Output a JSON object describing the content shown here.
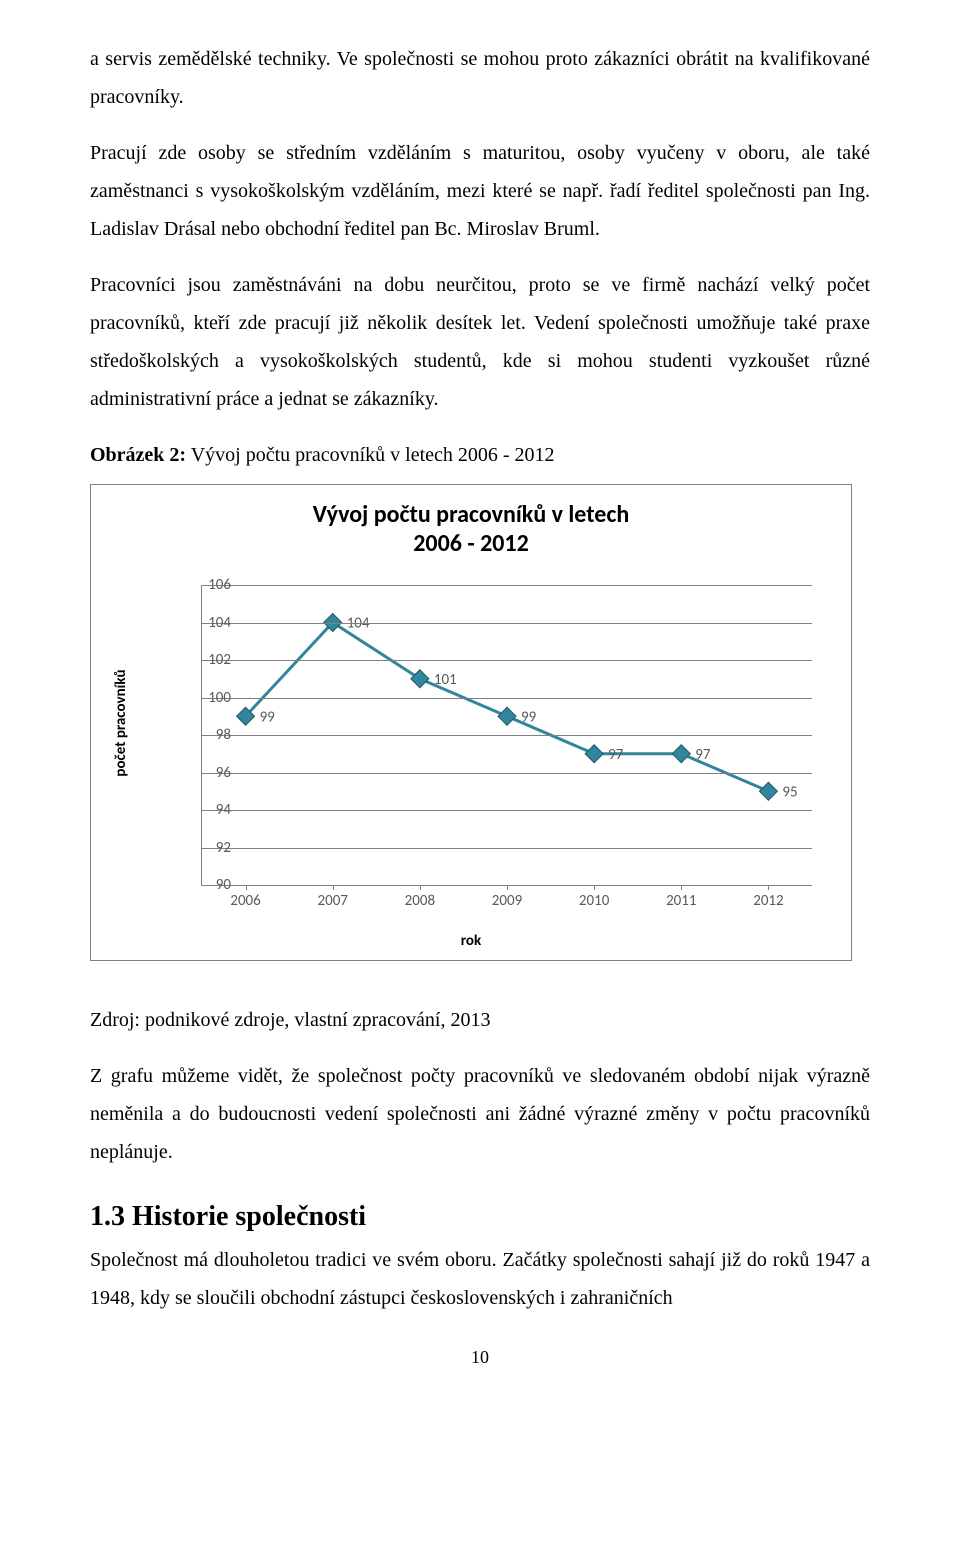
{
  "paragraphs": {
    "p1": "a servis zemědělské techniky. Ve společnosti se mohou proto zákazníci obrátit na kvalifikované pracovníky.",
    "p2": "Pracují zde osoby se středním vzděláním s maturitou, osoby vyučeny v oboru, ale také zaměstnanci s vysokoškolským vzděláním, mezi které se např. řadí ředitel společnosti pan Ing. Ladislav Drásal nebo obchodní ředitel pan Bc. Miroslav Bruml.",
    "p3": "Pracovníci jsou zaměstnáváni na dobu neurčitou, proto se ve firmě nachází velký počet pracovníků, kteří zde pracují již několik desítek let. Vedení společnosti umožňuje také praxe středoškolských a vysokoškolských studentů, kde si mohou studenti vyzkoušet různé administrativní práce a jednat se zákazníky.",
    "caption_label": "Obrázek 2:",
    "caption_text": " Vývoj počtu pracovníků v letech 2006 - 2012",
    "source": "Zdroj: podnikové zdroje, vlastní zpracování, 2013",
    "p4": "Z grafu můžeme vidět, že společnost počty pracovníků ve sledovaném období nijak výrazně neměnila a do budoucnosti vedení společnosti ani žádné výrazné změny v počtu pracovníků neplánuje.",
    "heading": "1.3  Historie společnosti",
    "p5": "Společnost má dlouholetou tradici ve svém oboru. Začátky společnosti sahají již do roků 1947 a 1948, kdy se sloučili obchodní zástupci československých i zahraničních",
    "page_number": "10"
  },
  "chart": {
    "type": "line",
    "title_line1": "Vývoj počtu pracovníků v letech",
    "title_line2": "2006 - 2012",
    "title_fontsize": 24,
    "x_axis_title": "rok",
    "y_axis_title": "počet pracovníků",
    "x_categories": [
      "2006",
      "2007",
      "2008",
      "2009",
      "2010",
      "2011",
      "2012"
    ],
    "values": [
      99,
      104,
      101,
      99,
      97,
      97,
      95
    ],
    "ylim": [
      90,
      106
    ],
    "ytick_step": 2,
    "line_color": "#31859c",
    "marker_fill": "#31859c",
    "marker_stroke": "#215968",
    "marker_size": 9,
    "line_width": 3,
    "grid_color": "#808080",
    "background_color": "#ffffff",
    "tick_label_color": "#595959",
    "tick_fontsize": 15,
    "axis_title_fontsize": 15,
    "data_label_fontsize": 15
  }
}
